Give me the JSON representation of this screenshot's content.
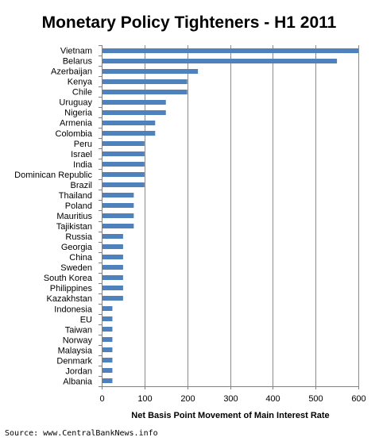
{
  "chart_data": {
    "type": "bar",
    "orientation": "horizontal",
    "title": "Monetary Policy Tighteners - H1 2011",
    "xlabel": "Net Basis Point Movement of Main Interest Rate",
    "ylabel": "",
    "xlim": [
      0,
      600
    ],
    "xticks": [
      0,
      100,
      200,
      300,
      400,
      500,
      600
    ],
    "grid": "vertical",
    "bar_color": "#4f81bd",
    "categories": [
      "Vietnam",
      "Belarus",
      "Azerbaijan",
      "Kenya",
      "Chile",
      "Uruguay",
      "Nigeria",
      "Armenia",
      "Colombia",
      "Peru",
      "Israel",
      "India",
      "Dominican Republic",
      "Brazil",
      "Thailand",
      "Poland",
      "Mauritius",
      "Tajikistan",
      "Russia",
      "Georgia",
      "China",
      "Sweden",
      "South Korea",
      "Philippines",
      "Kazakhstan",
      "Indonesia",
      "EU",
      "Taiwan",
      "Norway",
      "Malaysia",
      "Denmark",
      "Jordan",
      "Albania"
    ],
    "values": [
      600,
      550,
      225,
      200,
      200,
      150,
      150,
      125,
      125,
      100,
      100,
      100,
      100,
      100,
      75,
      75,
      75,
      75,
      50,
      50,
      50,
      50,
      50,
      50,
      50,
      25,
      25,
      25,
      25,
      25,
      25,
      25,
      25
    ]
  },
  "source": "Source: www.CentralBankNews.info"
}
